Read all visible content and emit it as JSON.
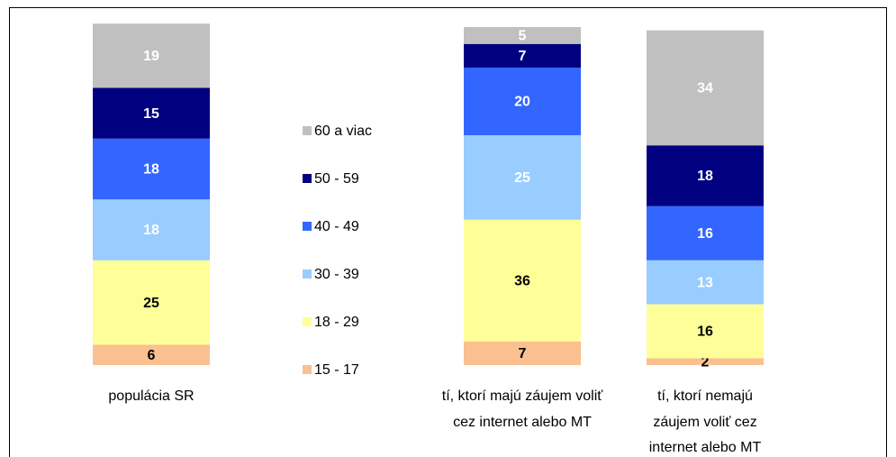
{
  "chart_data": {
    "type": "stacked_bar",
    "categories": [
      "populácia SR",
      "tí, ktorí majú záujem voliť cez internet alebo MT",
      "tí, ktorí nemajú záujem voliť cez internet alebo MT"
    ],
    "ylim": [
      0,
      100
    ],
    "series": [
      {
        "name": "15 - 17",
        "color": "#fac090",
        "label_color": "#000000",
        "values": [
          6,
          7,
          2
        ]
      },
      {
        "name": "18 - 29",
        "color": "#ffff99",
        "label_color": "#000000",
        "values": [
          25,
          36,
          16
        ]
      },
      {
        "name": "30 - 39",
        "color": "#99ccff",
        "label_color": "#ffffff",
        "values": [
          18,
          25,
          13
        ]
      },
      {
        "name": "40 - 49",
        "color": "#3366ff",
        "label_color": "#ffffff",
        "values": [
          18,
          20,
          16
        ]
      },
      {
        "name": "50 - 59",
        "color": "#000080",
        "label_color": "#ffffff",
        "values": [
          15,
          7,
          18
        ]
      },
      {
        "name": "60 a viac",
        "color": "#c0c0c0",
        "label_color": "#ffffff",
        "values": [
          19,
          5,
          34
        ]
      }
    ]
  }
}
